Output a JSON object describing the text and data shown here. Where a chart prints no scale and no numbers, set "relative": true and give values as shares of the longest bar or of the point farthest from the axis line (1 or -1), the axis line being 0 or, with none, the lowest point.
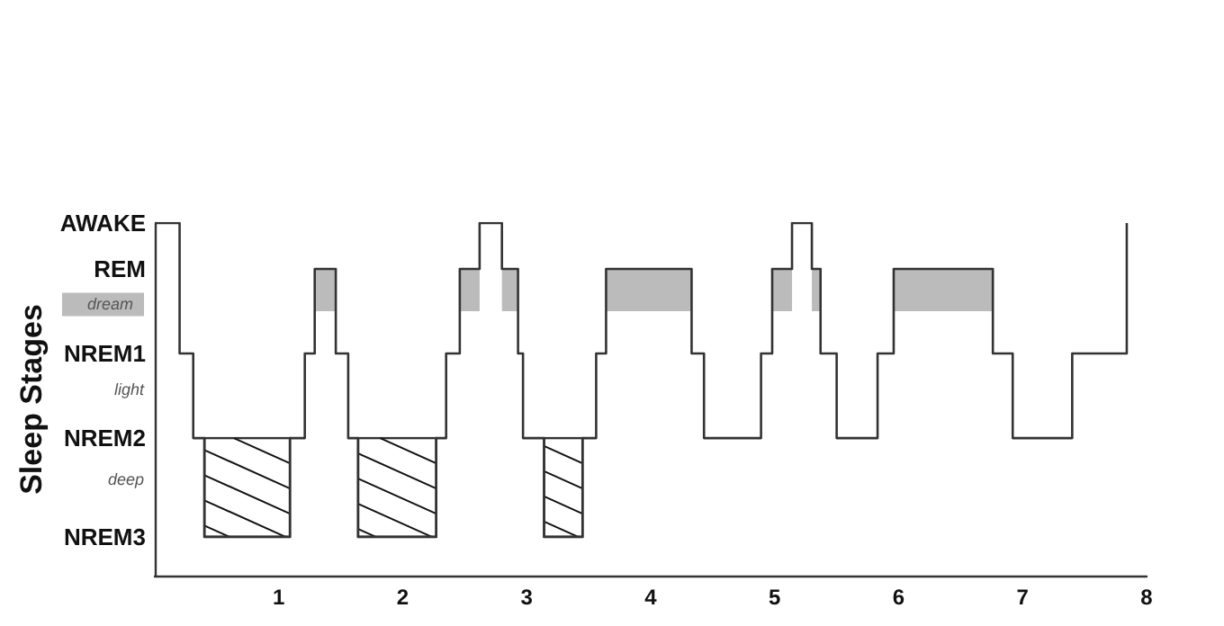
{
  "chart_data": {
    "type": "step",
    "ylabel": "Sleep Stages",
    "xlim": [
      0,
      8
    ],
    "xticks": [
      1,
      2,
      3,
      4,
      5,
      6,
      7,
      8
    ],
    "relative": true,
    "annotations": [
      "AWAKE",
      "REM",
      "NREM1",
      "NREM2",
      "NREM3",
      "dream",
      "light",
      "deep"
    ],
    "series": [
      {
        "color": "#333333",
        "x": [
          0,
          0.2,
          0.31,
          0.4,
          1.09,
          1.21,
          1.29,
          1.46,
          1.56,
          1.64,
          2.27,
          2.35,
          2.46,
          2.62,
          2.8,
          2.93,
          2.97,
          3.14,
          3.45,
          3.56,
          3.64,
          4.33,
          4.43,
          4.89,
          4.98,
          5.14,
          5.3,
          5.37,
          5.5,
          5.83,
          5.96,
          6.76,
          6.92,
          7.4,
          7.84
        ],
        "values": [
          1,
          0.63,
          0.39,
          0.11,
          0.39,
          0.63,
          0.87,
          0.63,
          0.39,
          0.11,
          0.39,
          0.63,
          0.87,
          1,
          0.87,
          0.63,
          0.39,
          0.11,
          0.39,
          0.63,
          0.87,
          0.63,
          0.39,
          0.63,
          0.87,
          1,
          0.87,
          0.63,
          0.39,
          0.63,
          0.87,
          0.63,
          0.39,
          0.63,
          1
        ]
      }
    ]
  }
}
